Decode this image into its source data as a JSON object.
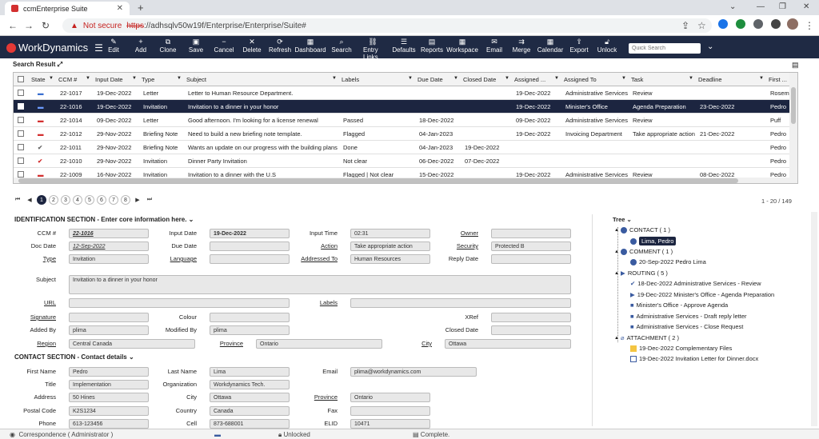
{
  "browser": {
    "tab_title": "ccmEnterprise Suite",
    "security": "Not secure",
    "url_scheme": "https",
    "url_rest": "://adhsqlv50w19f/Enterprise/Enterprise/Suite#"
  },
  "app": {
    "brand": "WorkDynamics",
    "toolbar": [
      "Edit",
      "Add",
      "Clone",
      "Save",
      "Cancel",
      "Delete",
      "Refresh",
      "Dashboard",
      "Search",
      "Entry Links",
      "Defaults",
      "Reports",
      "Workspace",
      "Email",
      "Merge",
      "Calendar",
      "Export",
      "Unlock"
    ],
    "quick_search_placeholder": "Quick Search"
  },
  "search_result": {
    "title": "Search Result",
    "columns": [
      "State",
      "CCM #",
      "Input Date",
      "Type",
      "Subject",
      "Labels",
      "Due Date",
      "Closed Date",
      "Assigned ...",
      "Assigned To",
      "Task",
      "Deadline",
      "First ..."
    ],
    "rows": [
      {
        "state": "folder-blue",
        "ccm": "22-1017",
        "input_date": "19-Dec-2022",
        "type": "Letter",
        "subject": "Letter to Human Resource Department.",
        "labels": "",
        "due": "",
        "closed": "",
        "assigned_date": "19-Dec-2022",
        "assigned_to": "Administrative Services",
        "task": "Review",
        "deadline": "",
        "first": "Rosema"
      },
      {
        "state": "folder-blue",
        "ccm": "22-1016",
        "input_date": "19-Dec-2022",
        "type": "Invitation",
        "subject": "Invitation to a dinner in your honor",
        "labels": "",
        "due": "",
        "closed": "",
        "assigned_date": "19-Dec-2022",
        "assigned_to": "Minister's Office",
        "task": "Agenda Preparation",
        "deadline": "23-Dec-2022",
        "first": "Pedro"
      },
      {
        "state": "folder-red",
        "ccm": "22-1014",
        "input_date": "09-Dec-2022",
        "type": "Letter",
        "subject": "Good afternoon. I'm looking for a license renewal",
        "labels": "Passed",
        "due": "18-Dec-2022",
        "closed": "",
        "assigned_date": "09-Dec-2022",
        "assigned_to": "Administrative Services",
        "task": "Review",
        "deadline": "",
        "first": "Puff"
      },
      {
        "state": "folder-red",
        "ccm": "22-1012",
        "input_date": "29-Nov-2022",
        "type": "Briefing Note",
        "subject": "Need to build a new briefing note template.",
        "labels": "Flagged",
        "due": "04-Jan-2023",
        "closed": "",
        "assigned_date": "19-Dec-2022",
        "assigned_to": "Invoicing Department",
        "task": "Take appropriate action",
        "deadline": "21-Dec-2022",
        "first": "Pedro"
      },
      {
        "state": "check-gray",
        "ccm": "22-1011",
        "input_date": "29-Nov-2022",
        "type": "Briefing Note",
        "subject": "Wants an update on our progress with the building plans",
        "labels": "Done",
        "due": "04-Jan-2023",
        "closed": "19-Dec-2022",
        "assigned_date": "",
        "assigned_to": "",
        "task": "",
        "deadline": "",
        "first": "Pedro"
      },
      {
        "state": "check-red",
        "ccm": "22-1010",
        "input_date": "29-Nov-2022",
        "type": "Invitation",
        "subject": "Dinner Party Invitation",
        "labels": "Not clear",
        "due": "06-Dec-2022",
        "closed": "07-Dec-2022",
        "assigned_date": "",
        "assigned_to": "",
        "task": "",
        "deadline": "",
        "first": "Pedro"
      },
      {
        "state": "folder-red",
        "ccm": "22-1009",
        "input_date": "16-Nov-2022",
        "type": "Invitation",
        "subject": "Invitation to a dinner with the U.S",
        "labels": "Flagged | Not clear",
        "due": "15-Dec-2022",
        "closed": "",
        "assigned_date": "19-Dec-2022",
        "assigned_to": "Administrative Services",
        "task": "Review",
        "deadline": "08-Dec-2022",
        "first": "Pedro"
      }
    ],
    "pages": [
      "1",
      "2",
      "3",
      "4",
      "5",
      "6",
      "7",
      "8"
    ],
    "page_info": "1 - 20 / 149"
  },
  "identification": {
    "title": "IDENTIFICATION SECTION - Enter core information here.",
    "labels": {
      "ccm": "CCM #",
      "input_date": "Input Date",
      "input_time": "Input Time",
      "owner": "Owner",
      "doc_date": "Doc Date",
      "due_date": "Due Date",
      "action": "Action",
      "security": "Security",
      "type": "Type",
      "language": "Language",
      "addressed_to": "Addressed To",
      "reply_date": "Reply Date",
      "subject": "Subject",
      "url": "URL",
      "labels": "Labels",
      "signature": "Signature",
      "colour": "Colour",
      "xref": "XRef",
      "added_by": "Added By",
      "modified_by": "Modified By",
      "closed_date": "Closed Date",
      "region": "Region",
      "province": "Province",
      "city": "City"
    },
    "values": {
      "ccm": "22-1016",
      "input_date": "19-Dec-2022",
      "input_time": "02:31",
      "owner": "",
      "doc_date": "12-Sep-2022",
      "due_date": "",
      "action": "Take appropriate action",
      "security": "Protected B",
      "type": "Invitation",
      "language": "",
      "addressed_to": "Human Resources",
      "reply_date": "",
      "subject": "Invitation to a dinner in your honor",
      "url": "",
      "labels": "",
      "signature": "",
      "colour": "",
      "xref": "",
      "added_by": "plima",
      "modified_by": "plima",
      "closed_date": "",
      "region": "Central Canada",
      "province": "Ontario",
      "city": "Ottawa"
    }
  },
  "contact": {
    "title": "CONTACT SECTION - Contact details",
    "labels": {
      "first_name": "First Name",
      "last_name": "Last Name",
      "email": "Email",
      "title": "Title",
      "organization": "Organization",
      "address": "Address",
      "city": "City",
      "province": "Province",
      "postal_code": "Postal Code",
      "country": "Country",
      "fax": "Fax",
      "phone": "Phone",
      "cell": "Cell",
      "elid": "ELID"
    },
    "values": {
      "first_name": "Pedro",
      "last_name": "Lima",
      "email": "plima@workdynamics.com",
      "title": "Implementation",
      "organization": "Workdynamics Tech.",
      "address": "50 Hines",
      "city": "Ottawa",
      "province": "Ontario",
      "postal_code": "K2S1234",
      "country": "Canada",
      "fax": "",
      "phone": "613-123456",
      "cell": "873-688001",
      "elid": "10471"
    }
  },
  "tree": {
    "title": "Tree",
    "contact": "CONTACT ( 1 )",
    "contact_item": "Lima, Pedro",
    "comment": "COMMENT ( 1 )",
    "comment_item": "20-Sep-2022 Pedro Lima",
    "routing": "ROUTING ( 5 )",
    "routing_items": [
      "18-Dec-2022 Administrative Services - Review",
      "19-Dec-2022 Minister's Office - Agenda Preparation",
      "Minister's Office - Approve Agenda",
      "Administrative Services - Draft reply letter",
      "Administrative Services - Close Request"
    ],
    "attachment": "ATTACHMENT ( 2 )",
    "attachment_items": [
      "19-Dec-2022 Complementary Files",
      "19-Dec-2022 Invitation Letter for Dinner.docx"
    ]
  },
  "status": {
    "user": "Correspondence ( Administrator )",
    "lock": "Unlocked",
    "state": "Complete."
  }
}
